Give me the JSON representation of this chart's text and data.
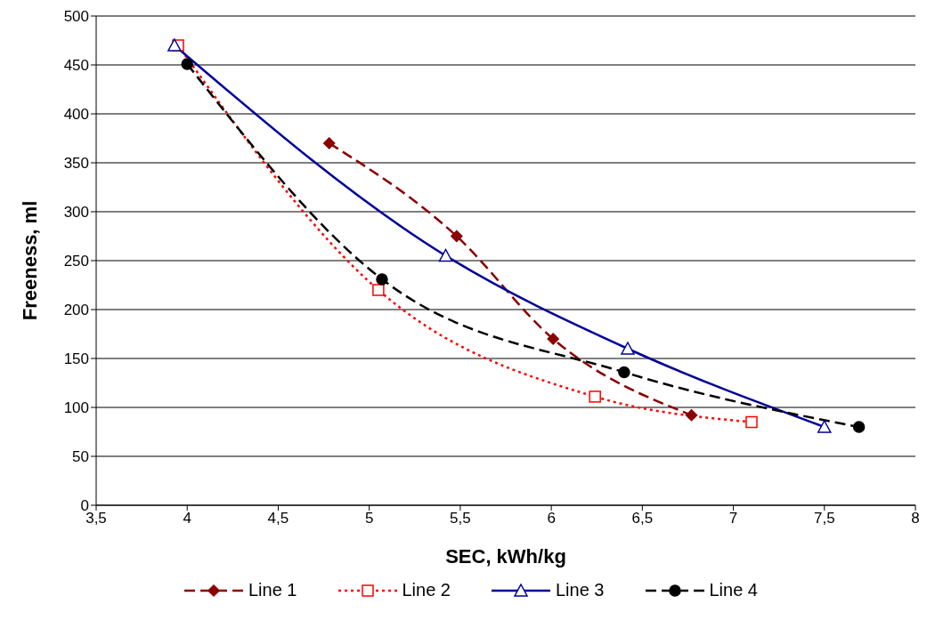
{
  "chart_data": {
    "type": "line",
    "xlabel": "SEC, kWh/kg",
    "ylabel": "Freeness, ml",
    "xlim": [
      3.5,
      8
    ],
    "xticks": [
      {
        "value": 3.5,
        "label": "3,5"
      },
      4,
      {
        "value": 4.5,
        "label": "4,5"
      },
      5,
      {
        "value": 5.5,
        "label": "5,5"
      },
      6,
      {
        "value": 6.5,
        "label": "6,5"
      },
      7,
      {
        "value": 7.5,
        "label": "7,5"
      },
      8
    ],
    "ylim": [
      0,
      500
    ],
    "yticks": [
      0,
      50,
      100,
      150,
      200,
      250,
      300,
      350,
      400,
      450,
      500
    ],
    "grid": "y",
    "legend": "bottom",
    "series": [
      {
        "name": "Line 1",
        "color": "#8b0000",
        "marker": "diamond",
        "line_style": "dashed",
        "x": [
          4.78,
          5.48,
          6.01,
          6.77
        ],
        "values": [
          370,
          275,
          170,
          92
        ]
      },
      {
        "name": "Line 2",
        "color": "#ff0000",
        "marker": "square",
        "line_style": "dotted",
        "x": [
          3.95,
          5.05,
          6.24,
          7.1
        ],
        "values": [
          470,
          220,
          111,
          85
        ]
      },
      {
        "name": "Line 3",
        "color": "#000099",
        "marker": "triangle",
        "line_style": "solid",
        "x": [
          3.93,
          5.42,
          6.42,
          7.5
        ],
        "values": [
          470,
          255,
          160,
          80
        ]
      },
      {
        "name": "Line 4",
        "color": "#000000",
        "marker": "circle",
        "line_style": "dashed",
        "x": [
          4.0,
          5.07,
          6.4,
          7.69
        ],
        "values": [
          451,
          231,
          136,
          80
        ]
      }
    ]
  }
}
